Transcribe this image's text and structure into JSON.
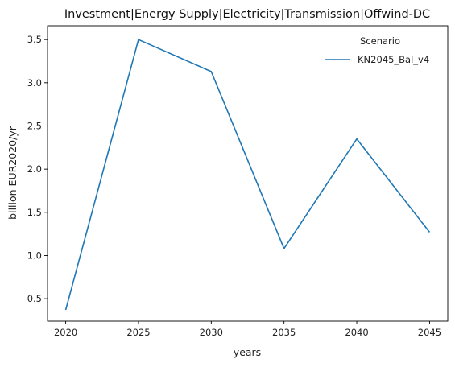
{
  "chart_data": {
    "type": "line",
    "title": "Investment|Energy Supply|Electricity|Transmission|Offwind-DC",
    "xlabel": "years",
    "ylabel": "billion EUR2020/yr",
    "x": [
      2020,
      2025,
      2030,
      2035,
      2040,
      2045
    ],
    "xticks": [
      "2020",
      "2025",
      "2030",
      "2035",
      "2040",
      "2045"
    ],
    "yticks": [
      "0.5",
      "1.0",
      "1.5",
      "2.0",
      "2.5",
      "3.0",
      "3.5"
    ],
    "ytick_values": [
      0.5,
      1.0,
      1.5,
      2.0,
      2.5,
      3.0,
      3.5
    ],
    "xlim": [
      2018.75,
      2046.25
    ],
    "ylim": [
      0.24,
      3.66
    ],
    "grid": false,
    "legend": {
      "title": "Scenario",
      "placement": "top-right"
    },
    "series": [
      {
        "name": "KN2045_Bal_v4",
        "color": "#1f77b4",
        "values": [
          0.37,
          3.5,
          3.13,
          1.08,
          2.35,
          1.27
        ]
      }
    ]
  }
}
